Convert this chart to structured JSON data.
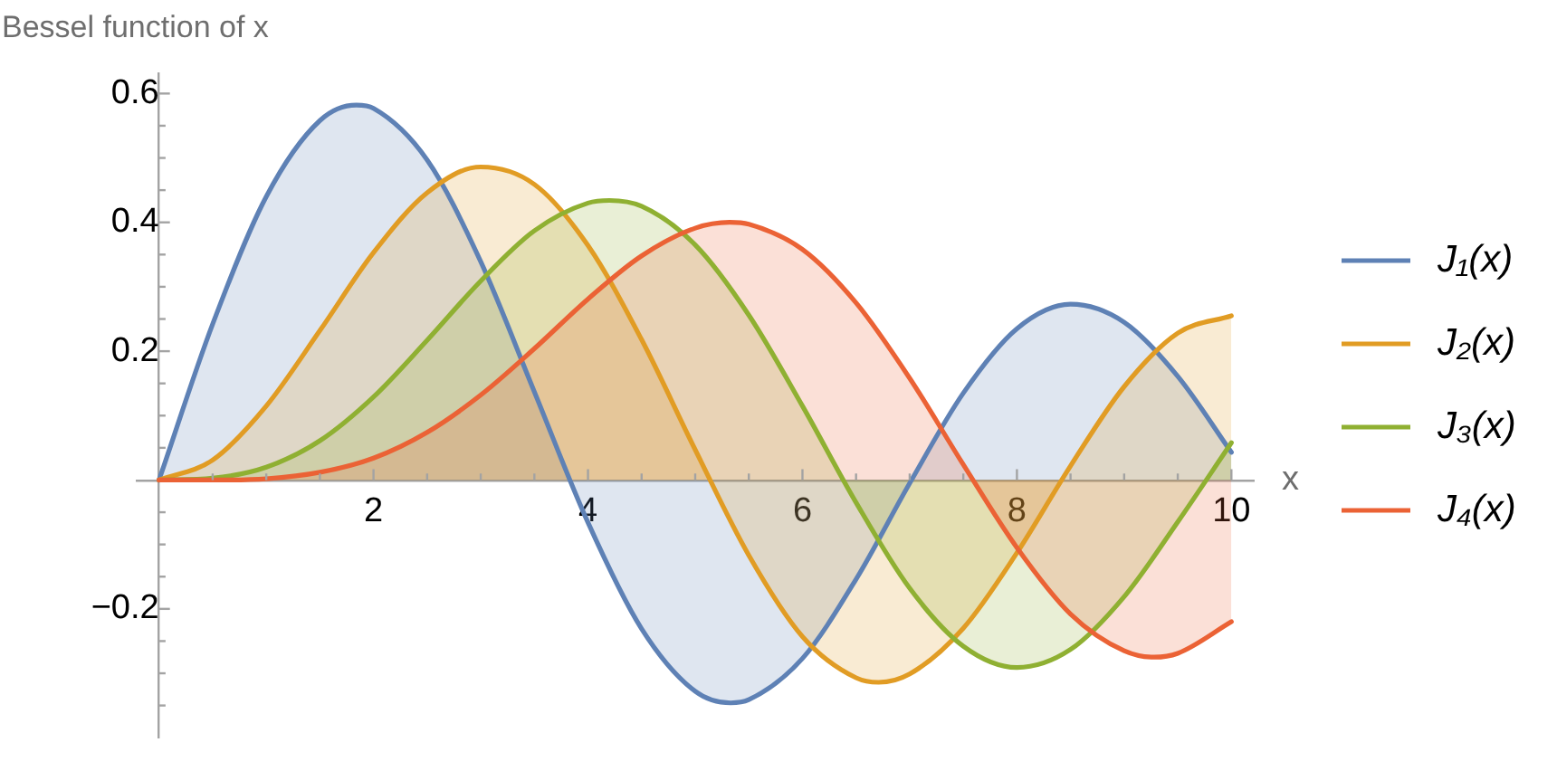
{
  "chart_data": {
    "type": "area",
    "ylabel": "Bessel function of x",
    "xlabel": "x",
    "xlim": [
      -0.2,
      10.2
    ],
    "ylim": [
      -0.4,
      0.63
    ],
    "xticks": [
      {
        "value": 0.5,
        "label": null
      },
      {
        "value": 1,
        "label": null
      },
      {
        "value": 1.5,
        "label": null
      },
      2,
      {
        "value": 2.5,
        "label": null
      },
      {
        "value": 3,
        "label": null
      },
      {
        "value": 3.5,
        "label": null
      },
      4,
      {
        "value": 4.5,
        "label": null
      },
      {
        "value": 5,
        "label": null
      },
      {
        "value": 5.5,
        "label": null
      },
      6,
      {
        "value": 6.5,
        "label": null
      },
      {
        "value": 7,
        "label": null
      },
      {
        "value": 7.5,
        "label": null
      },
      8,
      {
        "value": 8.5,
        "label": null
      },
      {
        "value": 9,
        "label": null
      },
      {
        "value": 9.5,
        "label": null
      },
      10
    ],
    "yticks": [
      {
        "value": -0.35,
        "label": null
      },
      {
        "value": -0.3,
        "label": null
      },
      {
        "value": -0.25,
        "label": null
      },
      {
        "value": -0.2,
        "label": "−0.2"
      },
      {
        "value": -0.15,
        "label": null
      },
      {
        "value": -0.1,
        "label": null
      },
      {
        "value": -0.05,
        "label": null
      },
      {
        "value": 0.05,
        "label": null
      },
      {
        "value": 0.1,
        "label": null
      },
      {
        "value": 0.15,
        "label": null
      },
      0.2,
      {
        "value": 0.25,
        "label": null
      },
      {
        "value": 0.3,
        "label": null
      },
      {
        "value": 0.35,
        "label": null
      },
      0.4,
      {
        "value": 0.45,
        "label": null
      },
      {
        "value": 0.5,
        "label": null
      },
      {
        "value": 0.55,
        "label": null
      },
      0.6
    ],
    "legend": "right",
    "series": [
      {
        "name": "J₁(x)",
        "color": "#5e81b5",
        "x": [
          0,
          0.5,
          1,
          1.5,
          1.84,
          2,
          2.5,
          3,
          3.5,
          4,
          4.5,
          5,
          5.33,
          5.5,
          6,
          6.5,
          7,
          7.5,
          8,
          8.5,
          9,
          9.5,
          10
        ],
        "values": [
          0,
          0.242,
          0.44,
          0.558,
          0.582,
          0.577,
          0.497,
          0.339,
          0.137,
          -0.066,
          -0.231,
          -0.328,
          -0.346,
          -0.341,
          -0.277,
          -0.154,
          -0.005,
          0.135,
          0.235,
          0.273,
          0.245,
          0.161,
          0.043
        ]
      },
      {
        "name": "J₂(x)",
        "color": "#e19c24",
        "x": [
          0,
          0.5,
          1,
          1.5,
          2,
          2.5,
          3,
          3.5,
          4,
          4.5,
          5,
          5.5,
          6,
          6.5,
          6.71,
          7,
          7.5,
          8,
          8.5,
          9,
          9.5,
          10
        ],
        "values": [
          0,
          0.031,
          0.115,
          0.232,
          0.353,
          0.446,
          0.486,
          0.459,
          0.364,
          0.218,
          0.047,
          -0.117,
          -0.243,
          -0.307,
          -0.314,
          -0.301,
          -0.23,
          -0.113,
          0.022,
          0.145,
          0.228,
          0.255
        ]
      },
      {
        "name": "J₃(x)",
        "color": "#8fb032",
        "x": [
          0,
          0.5,
          1,
          1.5,
          2,
          2.5,
          3,
          3.5,
          4,
          4.2,
          4.5,
          5,
          5.5,
          6,
          6.5,
          7,
          7.5,
          8,
          8.5,
          9,
          9.5,
          10
        ],
        "values": [
          0,
          0.003,
          0.02,
          0.061,
          0.129,
          0.217,
          0.309,
          0.387,
          0.43,
          0.434,
          0.425,
          0.365,
          0.256,
          0.115,
          -0.035,
          -0.168,
          -0.258,
          -0.291,
          -0.263,
          -0.181,
          -0.065,
          0.058
        ]
      },
      {
        "name": "J₄(x)",
        "color": "#eb6235",
        "x": [
          0,
          0.5,
          1,
          1.5,
          2,
          2.5,
          3,
          3.5,
          4,
          4.5,
          5,
          5.32,
          5.5,
          6,
          6.5,
          7,
          7.5,
          8,
          8.5,
          9,
          9.28,
          9.5,
          10
        ],
        "values": [
          0,
          0,
          0.002,
          0.012,
          0.034,
          0.074,
          0.132,
          0.204,
          0.281,
          0.348,
          0.391,
          0.4,
          0.397,
          0.358,
          0.275,
          0.158,
          0.024,
          -0.105,
          -0.208,
          -0.265,
          -0.275,
          -0.269,
          -0.22
        ]
      }
    ]
  }
}
